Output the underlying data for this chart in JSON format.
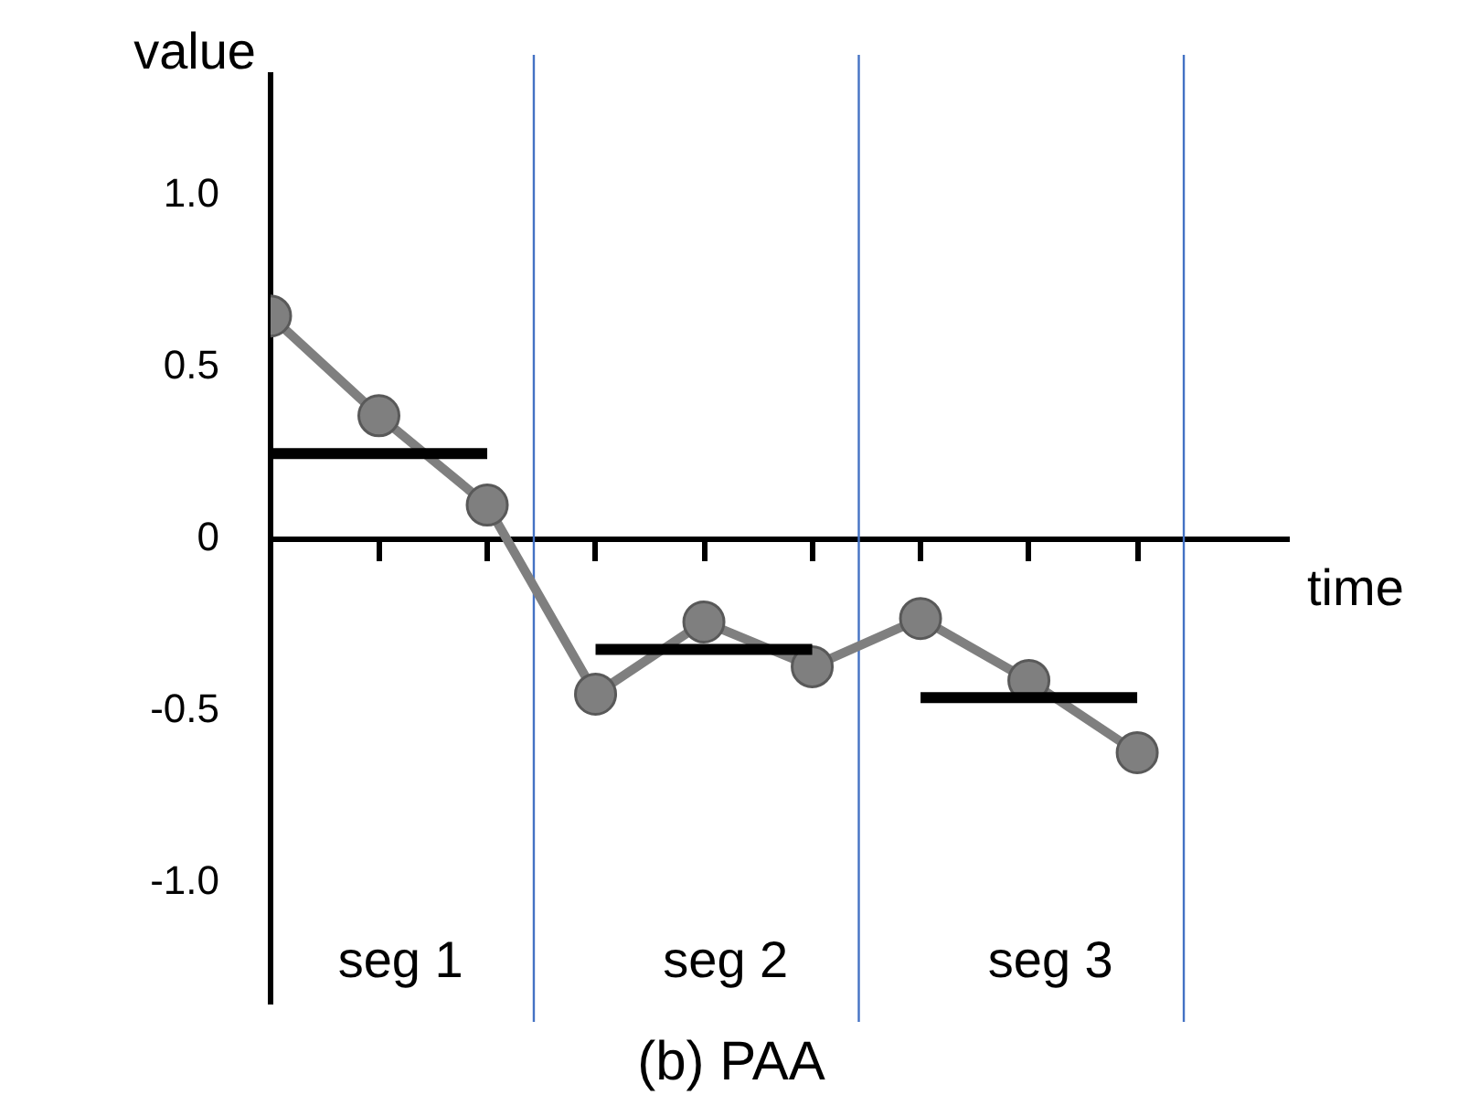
{
  "chart_data": {
    "type": "line",
    "xlabel": "time",
    "ylabel": "value",
    "categories": [
      null,
      null,
      null,
      null,
      null,
      null,
      null,
      null,
      null
    ],
    "ylim": [
      -1.35,
      1.35
    ],
    "yticks": [
      {
        "value": -1,
        "label": "-1.0"
      },
      {
        "value": -0.5,
        "label": "-0.5"
      },
      {
        "value": 0,
        "label": "0"
      },
      {
        "value": 0.5,
        "label": "0.5"
      },
      {
        "value": 1,
        "label": "1.0"
      }
    ],
    "tick_labels": "y",
    "grid": false,
    "legend": false,
    "marker": "circle",
    "series": [
      {
        "color": "#7f7f7f",
        "values": [
          0.65,
          0.36,
          0.1,
          -0.45,
          -0.24,
          -0.37,
          -0.23,
          -0.41,
          -0.62
        ]
      },
      {
        "type": "line",
        "values": [
          0.25,
          0.25,
          0.25,
          null,
          null,
          null,
          null,
          null,
          null
        ],
        "color": "#000000",
        "marker": "none"
      },
      {
        "type": "line",
        "values": [
          null,
          null,
          null,
          -0.32,
          -0.32,
          -0.32,
          null,
          null,
          null
        ],
        "color": "#000000",
        "marker": "none"
      },
      {
        "type": "line",
        "values": [
          null,
          null,
          null,
          null,
          null,
          null,
          -0.46,
          -0.46,
          -0.46
        ],
        "color": "#000000",
        "marker": "none"
      }
    ],
    "annotations": [
      "seg 1",
      "seg 2",
      "seg 3",
      "(b) PAA"
    ]
  }
}
